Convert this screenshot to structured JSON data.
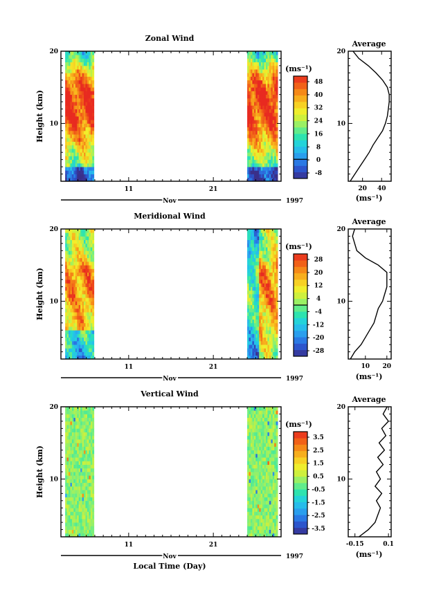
{
  "year_label": "1997",
  "month_label": "Nov",
  "x_axis_label": "Local Time (Day)",
  "panels": [
    {
      "key": "zonal",
      "title": "Zonal Wind",
      "ylabel": "Height (km)",
      "unit_label": "(ms⁻¹)",
      "average_title": "Average",
      "average_unit": "(ms⁻¹)"
    },
    {
      "key": "meridional",
      "title": "Meridional Wind",
      "ylabel": "Height (km)",
      "unit_label": "(ms⁻¹)",
      "average_title": "Average",
      "average_unit": "(ms⁻¹)"
    },
    {
      "key": "vertical",
      "title": "Vertical Wind",
      "ylabel": "Height (km)",
      "unit_label": "(ms⁻¹)",
      "average_title": "Average",
      "average_unit": "(ms⁻¹)"
    }
  ],
  "chart_data": [
    {
      "type": "heatmap",
      "title": "Zonal Wind",
      "ylabel": "Height (km)",
      "xlabel": "",
      "ylim": [
        2,
        20
      ],
      "yticks": [
        20,
        10
      ],
      "xlim": [
        3,
        29
      ],
      "xticks": [
        11,
        21
      ],
      "data_segments": [
        [
          3.5,
          6.9
        ],
        [
          25.0,
          28.6
        ]
      ],
      "colorbar_unit": "(ms⁻¹)",
      "colorbar_ticks": [
        "48",
        "40",
        "32",
        "24",
        "16",
        "8",
        "0",
        "-8"
      ],
      "colorbar_range": [
        -12,
        52
      ],
      "colormap": [
        "#3a2f8a",
        "#2c4fc8",
        "#2a7fe8",
        "#2ab0f0",
        "#22d0e0",
        "#30e6a8",
        "#7ef07a",
        "#c8f040",
        "#f4ee2a",
        "#f8c020",
        "#f69018",
        "#f05a18",
        "#e82a20"
      ],
      "profile": {
        "title": "Average",
        "xlabel": "(ms⁻¹)",
        "xlim": [
          5,
          50
        ],
        "xticks": [
          20,
          40
        ],
        "heights": [
          2.0,
          3.0,
          4.0,
          5.0,
          6.0,
          7.0,
          8.0,
          9.0,
          10.0,
          11.0,
          12.0,
          13.0,
          14.0,
          15.0,
          16.0,
          17.0,
          18.0,
          19.0,
          20.0
        ],
        "values": [
          7,
          12,
          17,
          22,
          27,
          31,
          36,
          41,
          44,
          46,
          47,
          48,
          48,
          46,
          41,
          34,
          26,
          16,
          10
        ]
      }
    },
    {
      "type": "heatmap",
      "title": "Meridional Wind",
      "ylabel": "Height (km)",
      "xlabel": "",
      "ylim": [
        2,
        20
      ],
      "yticks": [
        20,
        10
      ],
      "xlim": [
        3,
        29
      ],
      "xticks": [
        11,
        21
      ],
      "data_segments": [
        [
          3.5,
          6.9
        ],
        [
          25.0,
          28.6
        ]
      ],
      "colorbar_unit": "(ms⁻¹)",
      "colorbar_ticks": [
        "28",
        "20",
        "12",
        "4",
        "-4",
        "-12",
        "-20",
        "-28"
      ],
      "colorbar_range": [
        -32,
        32
      ],
      "colormap": [
        "#3a2f8a",
        "#2c4fc8",
        "#2a7fe8",
        "#2ab0f0",
        "#22d0e0",
        "#30e6a8",
        "#7ef07a",
        "#c8f040",
        "#f4ee2a",
        "#f8c020",
        "#f69018",
        "#f05a18",
        "#e82a20"
      ],
      "profile": {
        "title": "Average",
        "xlabel": "(ms⁻¹)",
        "xlim": [
          2,
          22
        ],
        "xticks": [
          10,
          20
        ],
        "heights": [
          2.0,
          3.0,
          4.0,
          5.0,
          6.0,
          7.0,
          8.0,
          9.0,
          10.0,
          11.0,
          12.0,
          13.0,
          14.0,
          15.0,
          16.0,
          17.0,
          18.0,
          19.0,
          20.0
        ],
        "values": [
          3,
          5,
          8,
          10,
          12,
          14,
          15,
          16,
          18,
          19,
          20,
          20,
          20,
          16,
          10,
          6,
          5,
          4,
          5
        ]
      }
    },
    {
      "type": "heatmap",
      "title": "Vertical Wind",
      "ylabel": "Height (km)",
      "xlabel": "Local Time (Day)",
      "ylim": [
        2,
        20
      ],
      "yticks": [
        20,
        10
      ],
      "xlim": [
        3,
        29
      ],
      "xticks": [
        11,
        21
      ],
      "data_segments": [
        [
          3.5,
          6.9
        ],
        [
          25.0,
          28.6
        ]
      ],
      "colorbar_unit": "(ms⁻¹)",
      "colorbar_ticks": [
        "3.5",
        "2.5",
        "1.5",
        "0.5",
        "-0.5",
        "-1.5",
        "-2.5",
        "-3.5"
      ],
      "colorbar_range": [
        -4,
        4
      ],
      "colormap": [
        "#3a2f8a",
        "#2c4fc8",
        "#2a7fe8",
        "#2ab0f0",
        "#22d0e0",
        "#30e6a8",
        "#7ef07a",
        "#c8f040",
        "#f4ee2a",
        "#f8c020",
        "#f69018",
        "#f05a18",
        "#e82a20"
      ],
      "profile": {
        "title": "Average",
        "xlabel": "(ms⁻¹)",
        "xlim": [
          -0.2,
          0.12
        ],
        "xticks": [
          -0.15,
          0.1
        ],
        "heights": [
          2.0,
          3.0,
          4.0,
          5.0,
          6.0,
          7.0,
          8.0,
          9.0,
          10.0,
          11.0,
          12.0,
          13.0,
          14.0,
          15.0,
          16.0,
          17.0,
          18.0,
          19.0,
          20.0
        ],
        "values": [
          -0.12,
          -0.05,
          0.0,
          0.02,
          0.04,
          0.01,
          0.05,
          0.0,
          0.04,
          0.01,
          0.06,
          0.02,
          0.07,
          0.03,
          0.08,
          0.05,
          0.1,
          0.06,
          0.09
        ]
      }
    }
  ]
}
